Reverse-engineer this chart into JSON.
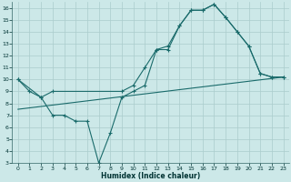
{
  "xlabel": "Humidex (Indice chaleur)",
  "bg_color": "#cce8e8",
  "grid_color": "#aacccc",
  "line_color": "#1a6b6b",
  "xlim": [
    -0.5,
    23.5
  ],
  "ylim": [
    3,
    16.5
  ],
  "xticks": [
    0,
    1,
    2,
    3,
    4,
    5,
    6,
    7,
    8,
    9,
    10,
    11,
    12,
    13,
    14,
    15,
    16,
    17,
    18,
    19,
    20,
    21,
    22,
    23
  ],
  "yticks": [
    3,
    4,
    5,
    6,
    7,
    8,
    9,
    10,
    11,
    12,
    13,
    14,
    15,
    16
  ],
  "line1_x": [
    0,
    1,
    2,
    3,
    4,
    5,
    6,
    7,
    8,
    9,
    10,
    11,
    12,
    13,
    14,
    15,
    16,
    17,
    18,
    19,
    20,
    21,
    22,
    23
  ],
  "line1_y": [
    10,
    9,
    8.5,
    7,
    7,
    6.5,
    6.5,
    3,
    5.5,
    8.5,
    9,
    9.5,
    12.5,
    12.5,
    14.5,
    15.8,
    15.8,
    16.3,
    15.2,
    14,
    12.8,
    10.5,
    10.2,
    10.2
  ],
  "line2_x": [
    0,
    2,
    3,
    9,
    10,
    11,
    12,
    13,
    14,
    15,
    16,
    17,
    18,
    19,
    20,
    21,
    22,
    23
  ],
  "line2_y": [
    10,
    8.5,
    9,
    9,
    9.5,
    11,
    12.5,
    12.8,
    14.5,
    15.8,
    15.8,
    16.3,
    15.2,
    14,
    12.8,
    10.5,
    10.2,
    10.2
  ],
  "line3_x": [
    0,
    23
  ],
  "line3_y": [
    7.5,
    10.2
  ]
}
